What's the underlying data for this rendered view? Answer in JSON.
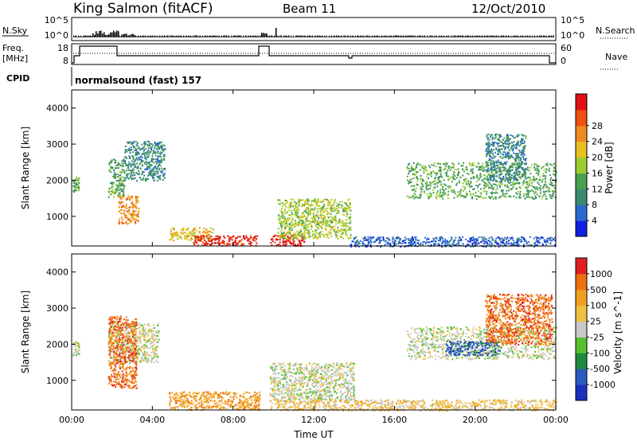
{
  "header": {
    "station": "King Salmon (fitACF)",
    "beam": "Beam 11",
    "date": "12/Oct/2010"
  },
  "sky_panel": {
    "left_label": "N.Sky",
    "right_label": "N.Search",
    "left_ticks": [
      "10^5",
      "10^0"
    ],
    "right_ticks": [
      "10^5",
      "10^0"
    ]
  },
  "freq_panel": {
    "left_label_1": "Freq.",
    "left_label_2": "[MHz]",
    "right_label": "Nave",
    "left_ticks": [
      "18",
      "8"
    ],
    "right_ticks": [
      "60",
      "0"
    ]
  },
  "cpid": {
    "label": "CPID",
    "text": "normalsound (fast) 157"
  },
  "x_axis": {
    "label": "Time UT",
    "ticks": [
      "00:00",
      "04:00",
      "08:00",
      "12:00",
      "16:00",
      "20:00",
      "00:00"
    ]
  },
  "chart_data": [
    {
      "type": "heatmap",
      "title": "",
      "xlabel": "Time UT",
      "ylabel": "Slant Range [km]",
      "xlim": [
        0,
        24
      ],
      "ylim": [
        180,
        4500
      ],
      "y_ticks": [
        1000,
        2000,
        3000,
        4000
      ],
      "colorbar": {
        "label": "Power [dB]",
        "ticks": [
          "4",
          "8",
          "12",
          "16",
          "20",
          "24",
          "28"
        ],
        "colors": [
          "#1020e0",
          "#2a6ad0",
          "#3a8a70",
          "#4aa050",
          "#9ccc30",
          "#e8c020",
          "#f08a20",
          "#ee5010",
          "#e01010"
        ]
      },
      "regions": [
        {
          "t0": 0.05,
          "t1": 0.35,
          "r0": 1700,
          "r1": 2100,
          "level": 3
        },
        {
          "t0": 1.8,
          "t1": 2.6,
          "r0": 1550,
          "r1": 2600,
          "level": 3
        },
        {
          "t0": 2.3,
          "t1": 3.3,
          "r0": 800,
          "r1": 1600,
          "level": 6
        },
        {
          "t0": 2.6,
          "t1": 4.6,
          "r0": 2000,
          "r1": 3100,
          "level": 2
        },
        {
          "t0": 4.8,
          "t1": 7.0,
          "r0": 350,
          "r1": 700,
          "level": 5
        },
        {
          "t0": 6.0,
          "t1": 9.2,
          "r0": 200,
          "r1": 480,
          "level": 8
        },
        {
          "t0": 9.8,
          "t1": 11.5,
          "r0": 200,
          "r1": 500,
          "level": 8
        },
        {
          "t0": 10.2,
          "t1": 13.8,
          "r0": 400,
          "r1": 1500,
          "level": 4
        },
        {
          "t0": 13.8,
          "t1": 24.0,
          "r0": 180,
          "r1": 450,
          "level": 1
        },
        {
          "t0": 16.6,
          "t1": 24.0,
          "r0": 1500,
          "r1": 2500,
          "level": 3
        },
        {
          "t0": 20.5,
          "t1": 22.5,
          "r0": 2000,
          "r1": 3300,
          "level": 2
        }
      ]
    },
    {
      "type": "heatmap",
      "title": "",
      "xlabel": "Time UT",
      "ylabel": "Slant Range [km]",
      "xlim": [
        0,
        24
      ],
      "ylim": [
        180,
        4500
      ],
      "y_ticks": [
        1000,
        2000,
        3000,
        4000
      ],
      "colorbar": {
        "label": "Velocity [m s^-1]",
        "ticks": [
          "1000",
          "500",
          "100",
          "25",
          "-25",
          "-100",
          "-500",
          "-1000"
        ],
        "colors": [
          "#1a30c0",
          "#2a5ac0",
          "#1e8a40",
          "#58c030",
          "#c8c8c8",
          "#f0c040",
          "#f0a020",
          "#f07010",
          "#e02020"
        ]
      },
      "regions": [
        {
          "t0": 0.05,
          "t1": 0.35,
          "r0": 1700,
          "r1": 2100,
          "level": 4
        },
        {
          "t0": 1.8,
          "t1": 4.3,
          "r0": 1500,
          "r1": 2600,
          "level": 4
        },
        {
          "t0": 1.8,
          "t1": 3.2,
          "r0": 800,
          "r1": 2800,
          "level": 7
        },
        {
          "t0": 4.8,
          "t1": 9.3,
          "r0": 200,
          "r1": 700,
          "level": 6
        },
        {
          "t0": 9.8,
          "t1": 14.0,
          "r0": 450,
          "r1": 1500,
          "level": 4
        },
        {
          "t0": 9.8,
          "t1": 24.0,
          "r0": 180,
          "r1": 480,
          "level": 5
        },
        {
          "t0": 16.6,
          "t1": 24.0,
          "r0": 1600,
          "r1": 2500,
          "level": 4
        },
        {
          "t0": 18.5,
          "t1": 21.2,
          "r0": 1700,
          "r1": 2100,
          "level": 1
        },
        {
          "t0": 20.5,
          "t1": 23.8,
          "r0": 2000,
          "r1": 3400,
          "level": 7
        }
      ]
    }
  ]
}
